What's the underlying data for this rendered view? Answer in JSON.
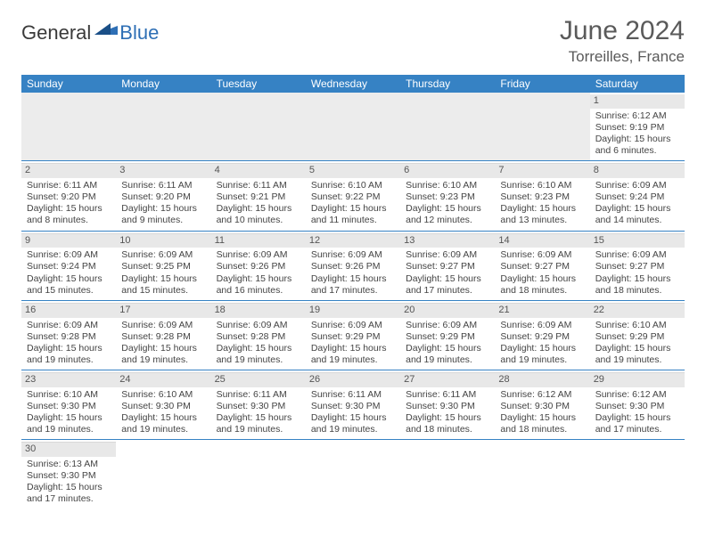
{
  "logo": {
    "general": "General",
    "blue": "Blue"
  },
  "title": "June 2024",
  "location": "Torreilles, France",
  "colors": {
    "header_bg": "#3682c4",
    "header_fg": "#ffffff",
    "daynum_bg": "#e8e8e8",
    "border": "#3682c4",
    "text": "#3a3a3a",
    "logo_blue": "#2e6fb5"
  },
  "days_of_week": [
    "Sunday",
    "Monday",
    "Tuesday",
    "Wednesday",
    "Thursday",
    "Friday",
    "Saturday"
  ],
  "weeks": [
    [
      null,
      null,
      null,
      null,
      null,
      null,
      {
        "n": "1",
        "sr": "6:12 AM",
        "ss": "9:19 PM",
        "dl": "15 hours and 6 minutes."
      }
    ],
    [
      {
        "n": "2",
        "sr": "6:11 AM",
        "ss": "9:20 PM",
        "dl": "15 hours and 8 minutes."
      },
      {
        "n": "3",
        "sr": "6:11 AM",
        "ss": "9:20 PM",
        "dl": "15 hours and 9 minutes."
      },
      {
        "n": "4",
        "sr": "6:11 AM",
        "ss": "9:21 PM",
        "dl": "15 hours and 10 minutes."
      },
      {
        "n": "5",
        "sr": "6:10 AM",
        "ss": "9:22 PM",
        "dl": "15 hours and 11 minutes."
      },
      {
        "n": "6",
        "sr": "6:10 AM",
        "ss": "9:23 PM",
        "dl": "15 hours and 12 minutes."
      },
      {
        "n": "7",
        "sr": "6:10 AM",
        "ss": "9:23 PM",
        "dl": "15 hours and 13 minutes."
      },
      {
        "n": "8",
        "sr": "6:09 AM",
        "ss": "9:24 PM",
        "dl": "15 hours and 14 minutes."
      }
    ],
    [
      {
        "n": "9",
        "sr": "6:09 AM",
        "ss": "9:24 PM",
        "dl": "15 hours and 15 minutes."
      },
      {
        "n": "10",
        "sr": "6:09 AM",
        "ss": "9:25 PM",
        "dl": "15 hours and 15 minutes."
      },
      {
        "n": "11",
        "sr": "6:09 AM",
        "ss": "9:26 PM",
        "dl": "15 hours and 16 minutes."
      },
      {
        "n": "12",
        "sr": "6:09 AM",
        "ss": "9:26 PM",
        "dl": "15 hours and 17 minutes."
      },
      {
        "n": "13",
        "sr": "6:09 AM",
        "ss": "9:27 PM",
        "dl": "15 hours and 17 minutes."
      },
      {
        "n": "14",
        "sr": "6:09 AM",
        "ss": "9:27 PM",
        "dl": "15 hours and 18 minutes."
      },
      {
        "n": "15",
        "sr": "6:09 AM",
        "ss": "9:27 PM",
        "dl": "15 hours and 18 minutes."
      }
    ],
    [
      {
        "n": "16",
        "sr": "6:09 AM",
        "ss": "9:28 PM",
        "dl": "15 hours and 19 minutes."
      },
      {
        "n": "17",
        "sr": "6:09 AM",
        "ss": "9:28 PM",
        "dl": "15 hours and 19 minutes."
      },
      {
        "n": "18",
        "sr": "6:09 AM",
        "ss": "9:28 PM",
        "dl": "15 hours and 19 minutes."
      },
      {
        "n": "19",
        "sr": "6:09 AM",
        "ss": "9:29 PM",
        "dl": "15 hours and 19 minutes."
      },
      {
        "n": "20",
        "sr": "6:09 AM",
        "ss": "9:29 PM",
        "dl": "15 hours and 19 minutes."
      },
      {
        "n": "21",
        "sr": "6:09 AM",
        "ss": "9:29 PM",
        "dl": "15 hours and 19 minutes."
      },
      {
        "n": "22",
        "sr": "6:10 AM",
        "ss": "9:29 PM",
        "dl": "15 hours and 19 minutes."
      }
    ],
    [
      {
        "n": "23",
        "sr": "6:10 AM",
        "ss": "9:30 PM",
        "dl": "15 hours and 19 minutes."
      },
      {
        "n": "24",
        "sr": "6:10 AM",
        "ss": "9:30 PM",
        "dl": "15 hours and 19 minutes."
      },
      {
        "n": "25",
        "sr": "6:11 AM",
        "ss": "9:30 PM",
        "dl": "15 hours and 19 minutes."
      },
      {
        "n": "26",
        "sr": "6:11 AM",
        "ss": "9:30 PM",
        "dl": "15 hours and 19 minutes."
      },
      {
        "n": "27",
        "sr": "6:11 AM",
        "ss": "9:30 PM",
        "dl": "15 hours and 18 minutes."
      },
      {
        "n": "28",
        "sr": "6:12 AM",
        "ss": "9:30 PM",
        "dl": "15 hours and 18 minutes."
      },
      {
        "n": "29",
        "sr": "6:12 AM",
        "ss": "9:30 PM",
        "dl": "15 hours and 17 minutes."
      }
    ],
    [
      {
        "n": "30",
        "sr": "6:13 AM",
        "ss": "9:30 PM",
        "dl": "15 hours and 17 minutes."
      },
      null,
      null,
      null,
      null,
      null,
      null
    ]
  ],
  "labels": {
    "sunrise": "Sunrise:",
    "sunset": "Sunset:",
    "daylight": "Daylight:"
  }
}
